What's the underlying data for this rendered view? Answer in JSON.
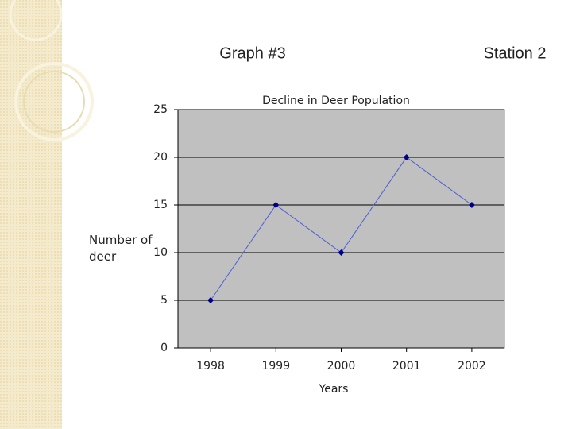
{
  "slide": {
    "title": "Graph #3",
    "station": "Station 2"
  },
  "chart_data": {
    "type": "line",
    "title": "Decline in Deer Population",
    "categories": [
      "1998",
      "1999",
      "2000",
      "2001",
      "2002"
    ],
    "values": [
      5,
      15,
      10,
      20,
      15
    ],
    "color": "#000080",
    "ylim": [
      0,
      25
    ],
    "yticks": [
      0,
      5,
      10,
      15,
      20,
      25
    ],
    "grid": true,
    "xlabel": "Years",
    "ylabel": "Number of deer"
  }
}
